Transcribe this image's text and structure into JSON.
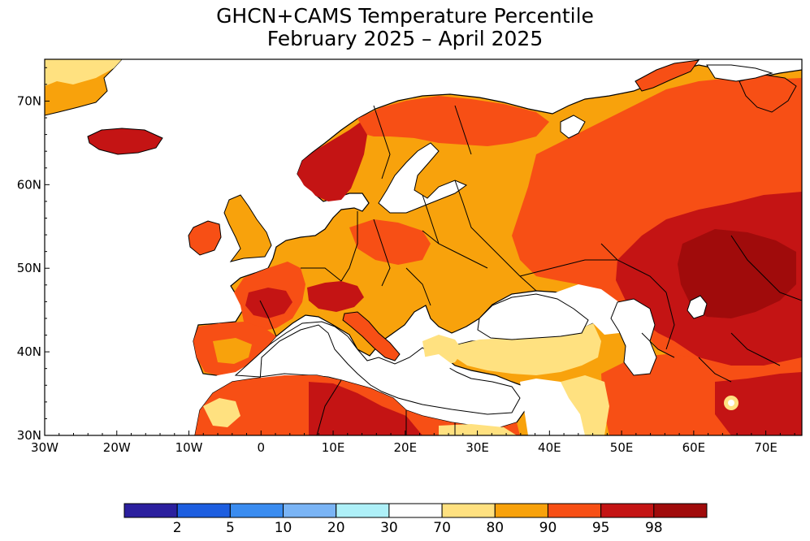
{
  "title": {
    "line1": "GHCN+CAMS Temperature Percentile",
    "line2": "February 2025 – April 2025"
  },
  "map": {
    "lon_range": [
      -30,
      75
    ],
    "lat_range": [
      30,
      75
    ],
    "x_ticks": [
      {
        "lon": -30,
        "label": "30W"
      },
      {
        "lon": -20,
        "label": "20W"
      },
      {
        "lon": -10,
        "label": "10W"
      },
      {
        "lon": 0,
        "label": "0"
      },
      {
        "lon": 10,
        "label": "10E"
      },
      {
        "lon": 20,
        "label": "20E"
      },
      {
        "lon": 30,
        "label": "30E"
      },
      {
        "lon": 40,
        "label": "40E"
      },
      {
        "lon": 50,
        "label": "50E"
      },
      {
        "lon": 60,
        "label": "60E"
      },
      {
        "lon": 70,
        "label": "70E"
      }
    ],
    "y_ticks": [
      {
        "lat": 30,
        "label": "30N"
      },
      {
        "lat": 40,
        "label": "40N"
      },
      {
        "lat": 50,
        "label": "50N"
      },
      {
        "lat": 60,
        "label": "60N"
      },
      {
        "lat": 70,
        "label": "70N"
      }
    ]
  },
  "colorbar": {
    "colors": [
      "#2b1f9e",
      "#1d5ee0",
      "#3a8cf0",
      "#7ab4f5",
      "#aef0f8",
      "#ffffff",
      "#ffe180",
      "#f8a20c",
      "#f74f15",
      "#c41414",
      "#a00b0b"
    ],
    "labels": [
      "2",
      "5",
      "10",
      "20",
      "30",
      "70",
      "80",
      "90",
      "95",
      "98"
    ]
  }
}
